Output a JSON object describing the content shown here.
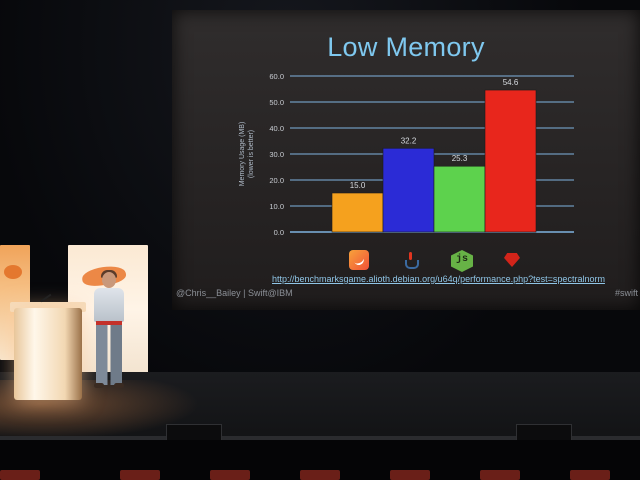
{
  "slide": {
    "title": "Low Memory",
    "url": "http://benchmarksgame.alioth.debian.org/u64q/performance.php?test=spectralnorm",
    "footer_left": "@Chris__Bailey | Swift@IBM",
    "footer_right": "#swift"
  },
  "colors": {
    "title": "#7fc8ef",
    "grid": "#7fb3e0",
    "bars": [
      "#f5a11e",
      "#2b2bd6",
      "#5dd24d",
      "#e8261c"
    ]
  },
  "chart_data": {
    "type": "bar",
    "title": "Low Memory",
    "categories": [
      "Swift",
      "Java",
      "Node.js",
      "Ruby"
    ],
    "values": [
      15.0,
      32.2,
      25.3,
      54.6
    ],
    "value_labels": [
      "15.0",
      "32.2",
      "25.3",
      "54.6"
    ],
    "ylabel": "Memory Usage (MB) (lower is better)",
    "ylabel_lines": [
      "Memory Usage (MB)",
      "(lower is better)"
    ],
    "ylim": [
      0,
      60
    ],
    "yticks": [
      "0.0",
      "10.0",
      "20.0",
      "30.0",
      "40.0",
      "50.0",
      "60.0"
    ],
    "grid": true,
    "category_icons": [
      "swift-icon",
      "java-icon",
      "nodejs-icon",
      "ruby-icon"
    ]
  }
}
